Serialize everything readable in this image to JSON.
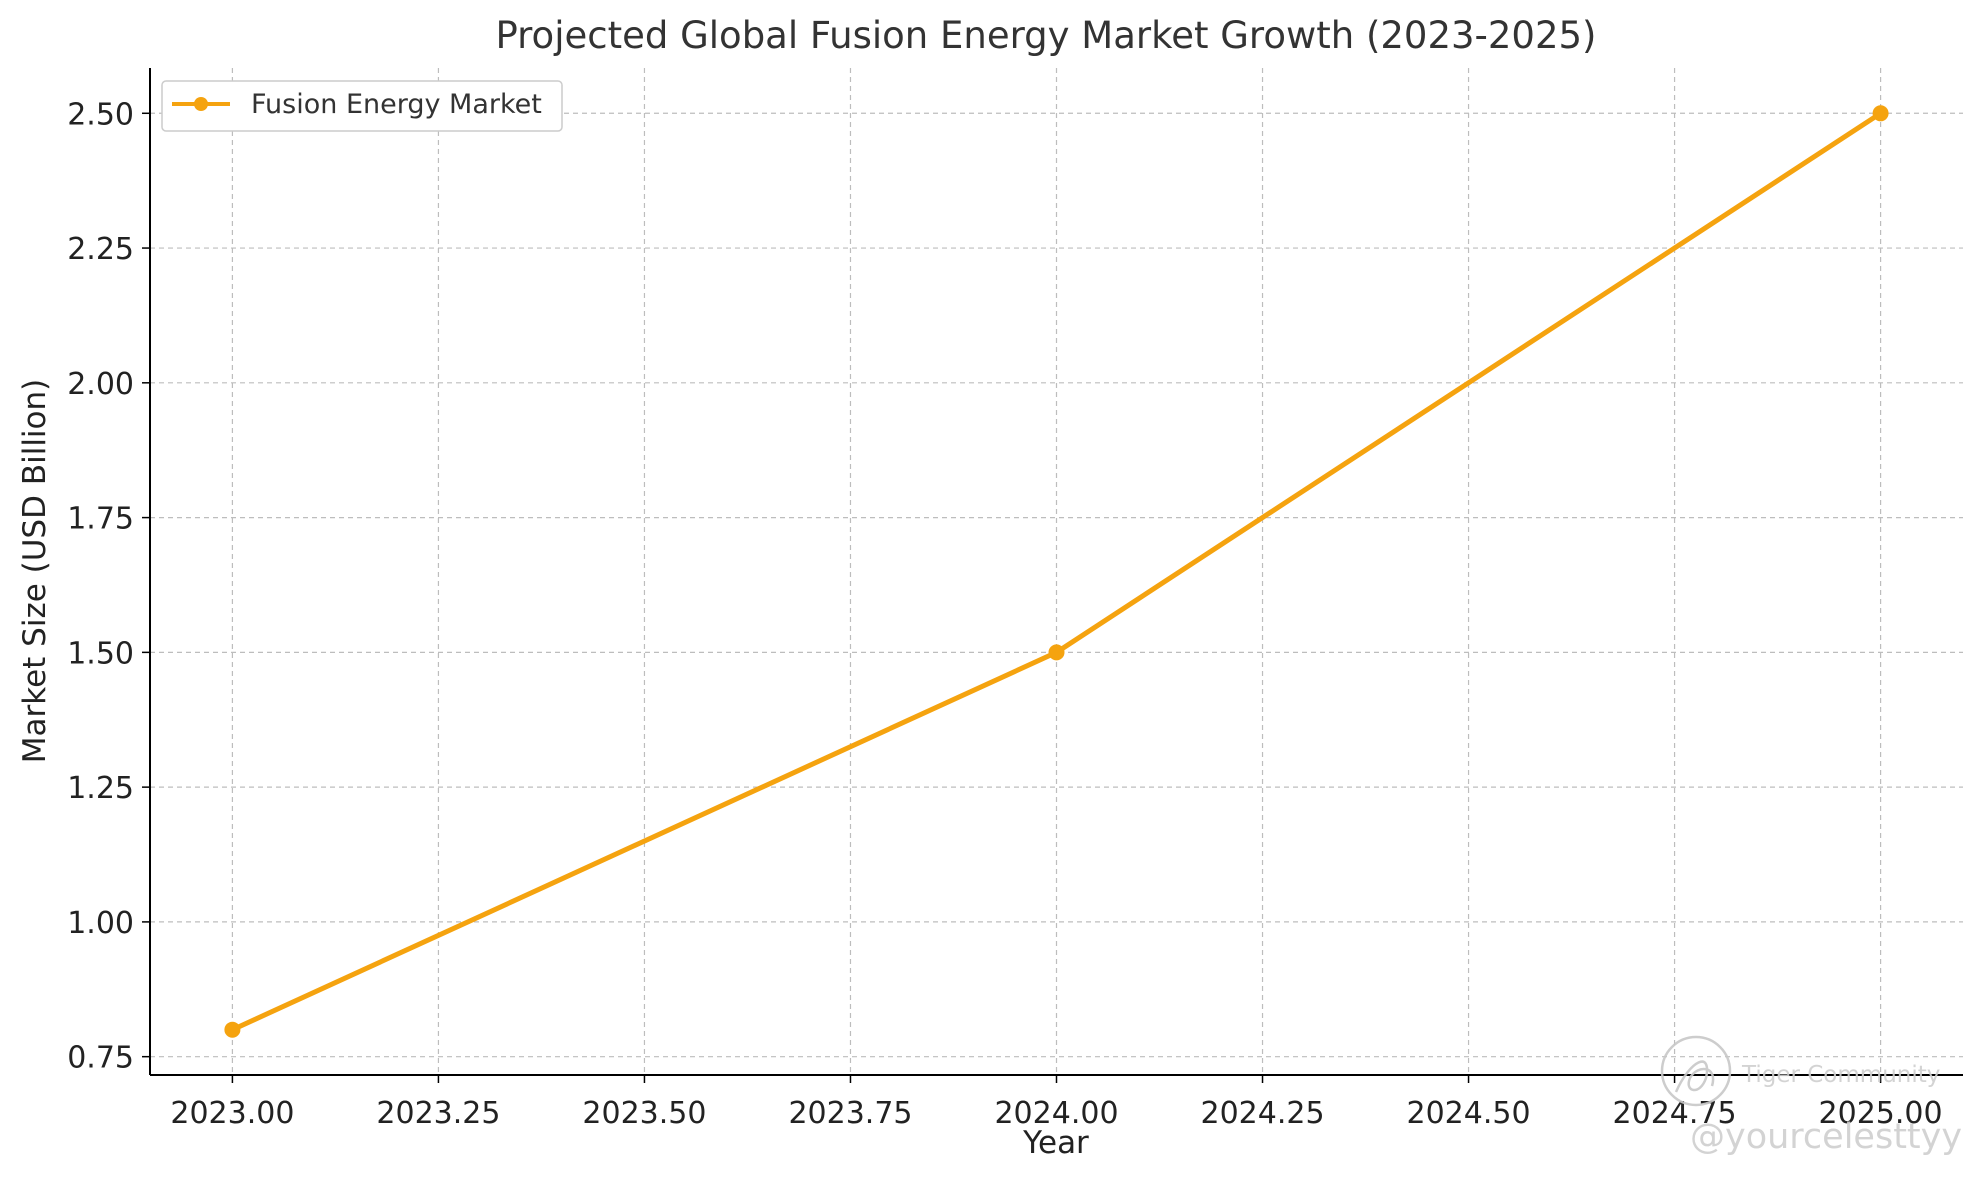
{
  "chart_data": {
    "type": "line",
    "title": "Projected Global Fusion Energy Market Growth (2023-2025)",
    "xlabel": "Year",
    "ylabel": "Market Size (USD Billion)",
    "xlim": [
      2022.9,
      2025.1
    ],
    "ylim": [
      0.716,
      2.584
    ],
    "xticks": [
      2023.0,
      2023.25,
      2023.5,
      2023.75,
      2024.0,
      2024.25,
      2024.5,
      2024.75,
      2025.0
    ],
    "xtick_labels": [
      "2023.00",
      "2023.25",
      "2023.50",
      "2023.75",
      "2024.00",
      "2024.25",
      "2024.50",
      "2024.75",
      "2025.00"
    ],
    "yticks": [
      0.75,
      1.0,
      1.25,
      1.5,
      1.75,
      2.0,
      2.25,
      2.5
    ],
    "ytick_labels": [
      "0.75",
      "1.00",
      "1.25",
      "1.50",
      "1.75",
      "2.00",
      "2.25",
      "2.50"
    ],
    "grid": true,
    "legend_position": "top-left",
    "series": [
      {
        "name": "Fusion Energy Market",
        "x": [
          2023,
          2024,
          2025
        ],
        "values": [
          0.8,
          1.5,
          2.5
        ],
        "color": "#f5a30f",
        "marker": "circle"
      }
    ]
  },
  "watermark": {
    "brand": "Tiger Community",
    "handle": "@yourcelesttyy"
  }
}
